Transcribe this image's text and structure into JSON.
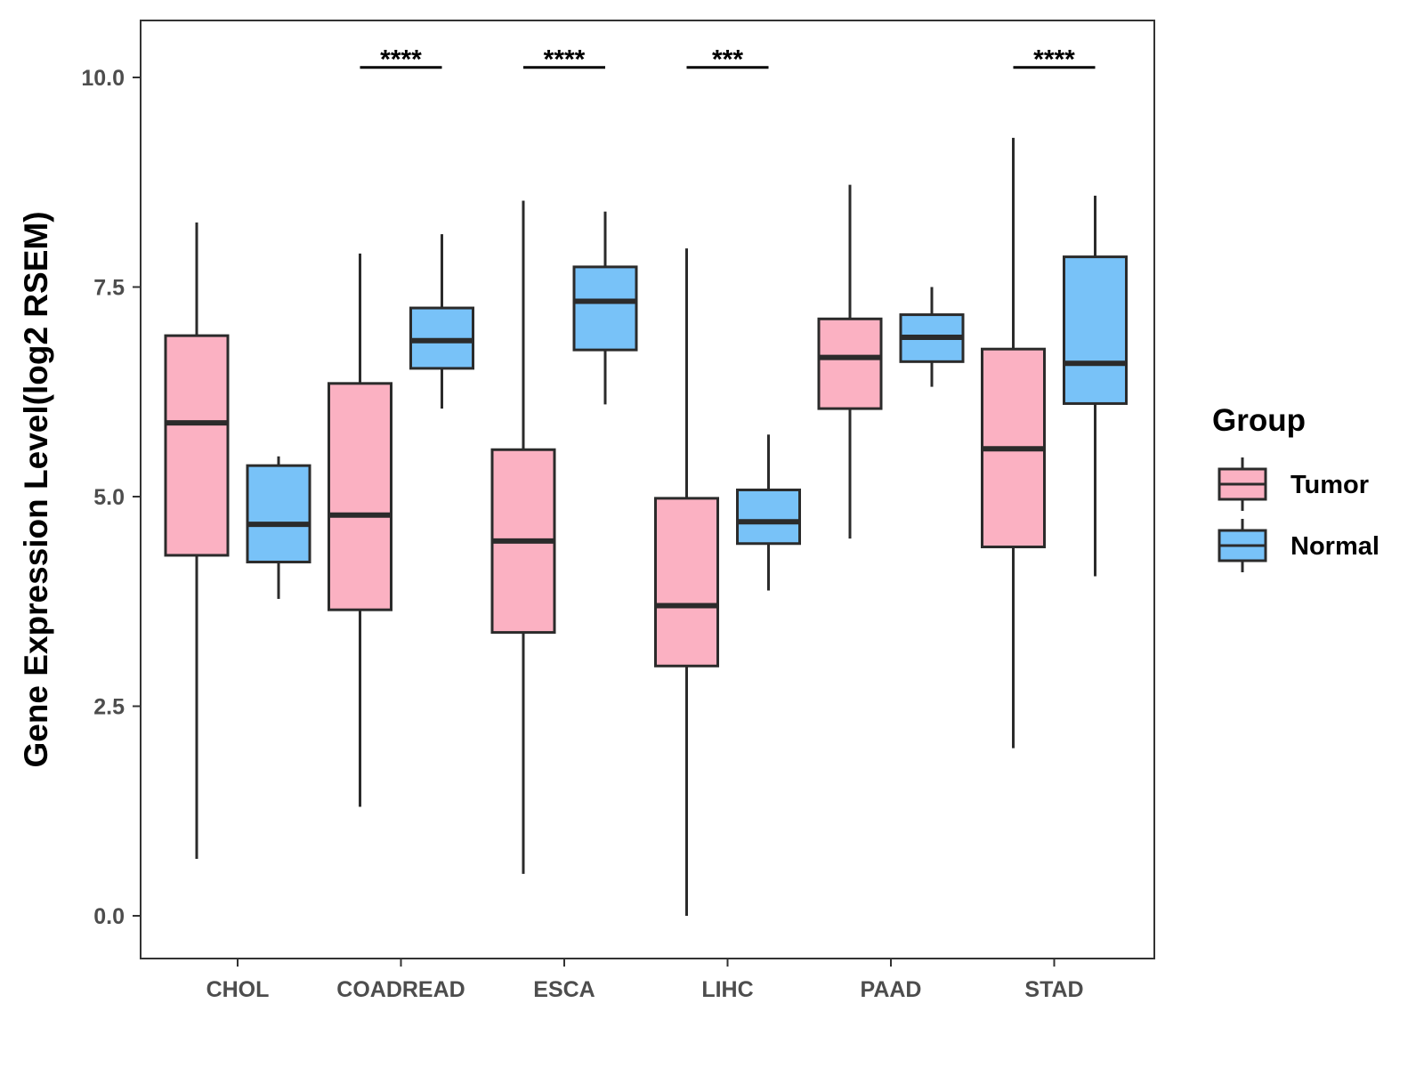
{
  "chart_data": {
    "type": "boxplot",
    "title": "",
    "xlabel": "",
    "ylabel": "Gene Expression Level(log2 RSEM)",
    "ylim": [
      -0.5,
      10.7
    ],
    "yticks": [
      0.0,
      2.5,
      5.0,
      7.5,
      10.0
    ],
    "ytick_labels": [
      "0.0",
      "2.5",
      "5.0",
      "7.5",
      "10.0"
    ],
    "categories": [
      "CHOL",
      "COADREAD",
      "ESCA",
      "LIHC",
      "PAAD",
      "STAD"
    ],
    "legend": {
      "title": "Group",
      "position": "right",
      "entries": [
        "Tumor",
        "Normal"
      ]
    },
    "series": [
      {
        "name": "Tumor",
        "color": "#fbb1c2",
        "boxes": [
          {
            "min": 0.68,
            "q1": 4.3,
            "median": 5.88,
            "q3": 6.92,
            "max": 8.27
          },
          {
            "min": 1.3,
            "q1": 3.65,
            "median": 4.78,
            "q3": 6.35,
            "max": 7.9
          },
          {
            "min": 0.5,
            "q1": 3.38,
            "median": 4.47,
            "q3": 5.56,
            "max": 8.53
          },
          {
            "min": 0.0,
            "q1": 2.98,
            "median": 3.7,
            "q3": 4.98,
            "max": 7.96
          },
          {
            "min": 4.5,
            "q1": 6.05,
            "median": 6.66,
            "q3": 7.12,
            "max": 8.72
          },
          {
            "min": 2.0,
            "q1": 4.4,
            "median": 5.57,
            "q3": 6.76,
            "max": 9.28
          }
        ]
      },
      {
        "name": "Normal",
        "color": "#78c2f8",
        "boxes": [
          {
            "min": 3.78,
            "q1": 4.22,
            "median": 4.67,
            "q3": 5.37,
            "max": 5.48
          },
          {
            "min": 6.05,
            "q1": 6.53,
            "median": 6.86,
            "q3": 7.25,
            "max": 8.13
          },
          {
            "min": 6.1,
            "q1": 6.75,
            "median": 7.33,
            "q3": 7.74,
            "max": 8.4
          },
          {
            "min": 3.88,
            "q1": 4.44,
            "median": 4.7,
            "q3": 5.08,
            "max": 5.74
          },
          {
            "min": 6.31,
            "q1": 6.61,
            "median": 6.9,
            "q3": 7.17,
            "max": 7.5
          },
          {
            "min": 4.05,
            "q1": 6.11,
            "median": 6.59,
            "q3": 7.86,
            "max": 8.59
          }
        ]
      }
    ],
    "significance": [
      {
        "category": "COADREAD",
        "label": "****"
      },
      {
        "category": "ESCA",
        "label": "****"
      },
      {
        "category": "LIHC",
        "label": "***"
      },
      {
        "category": "STAD",
        "label": "****"
      }
    ],
    "significance_y": 10.12
  }
}
